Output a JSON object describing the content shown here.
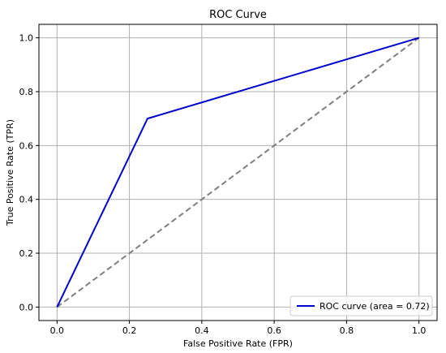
{
  "chart_data": {
    "type": "line",
    "title": "ROC Curve",
    "xlabel": "False Positive Rate (FPR)",
    "ylabel": "True Positive Rate (TPR)",
    "xlim": [
      -0.05,
      1.05
    ],
    "ylim": [
      -0.05,
      1.05
    ],
    "xticks": [
      0.0,
      0.2,
      0.4,
      0.6,
      0.8,
      1.0
    ],
    "yticks": [
      0.0,
      0.2,
      0.4,
      0.6,
      0.8,
      1.0
    ],
    "xtick_labels": [
      "0.0",
      "0.2",
      "0.4",
      "0.6",
      "0.8",
      "1.0"
    ],
    "ytick_labels": [
      "0.0",
      "0.2",
      "0.4",
      "0.6",
      "0.8",
      "1.0"
    ],
    "grid": true,
    "legend_position": "lower-right",
    "series": [
      {
        "name": "ROC curve (area = 0.72)",
        "x": [
          0.0,
          0.25,
          1.0
        ],
        "y": [
          0.0,
          0.7,
          1.0
        ],
        "color": "#0000cd",
        "style": "solid"
      },
      {
        "x": [
          0.0,
          1.0
        ],
        "y": [
          0.0,
          1.0
        ],
        "color": "#808080",
        "style": "dashed"
      }
    ]
  }
}
